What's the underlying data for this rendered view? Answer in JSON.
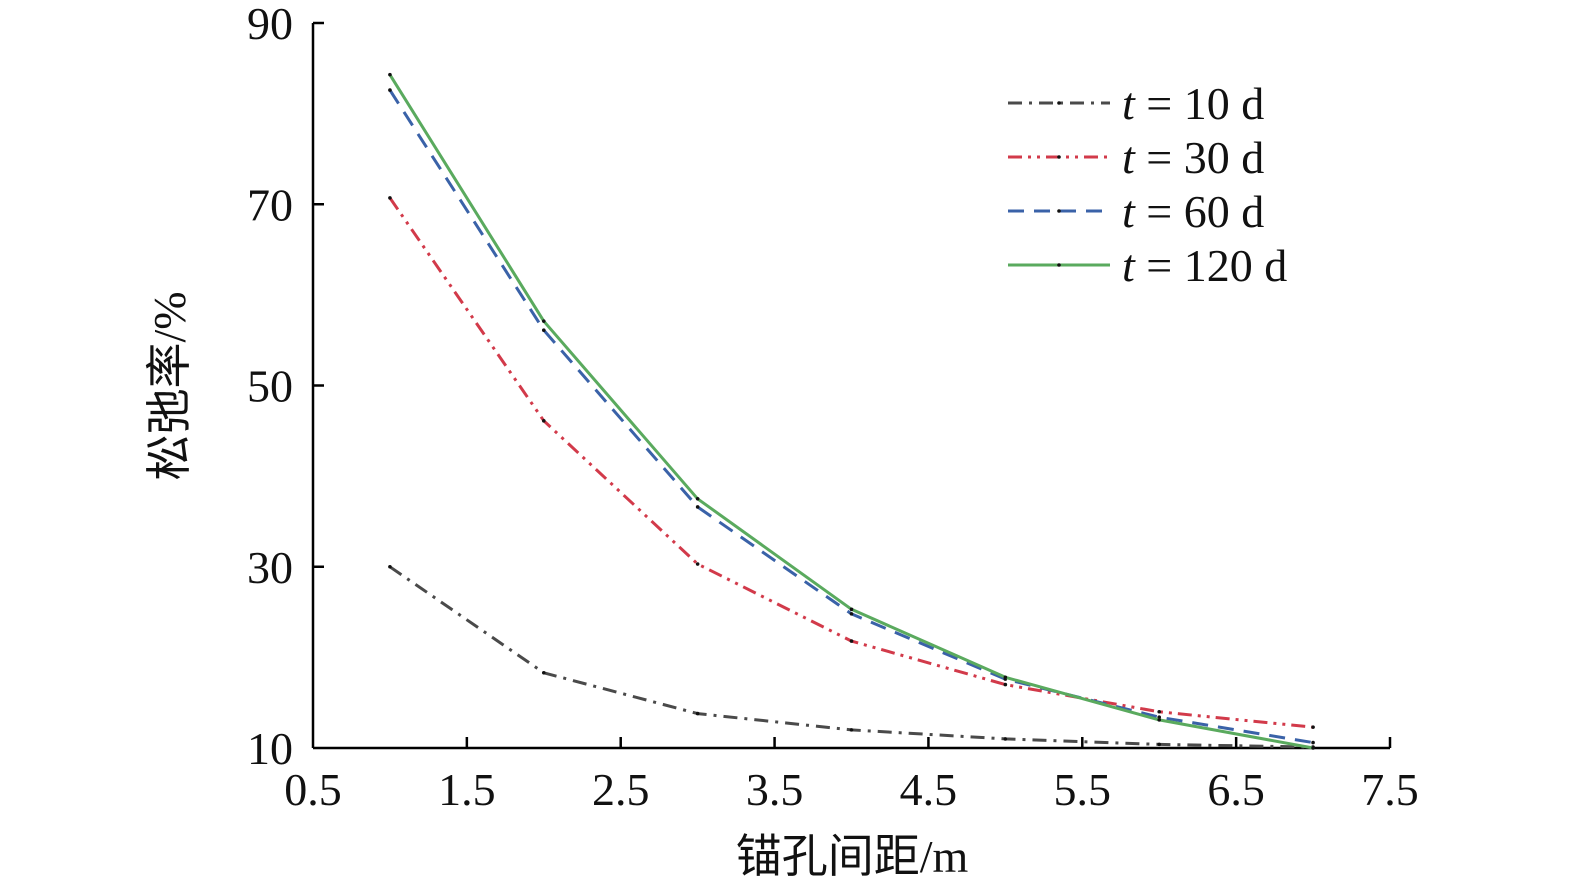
{
  "chart_data": {
    "type": "line",
    "xlabel": "锚孔间距/m",
    "ylabel": "松弛率/%",
    "xlim": [
      0.5,
      7.5
    ],
    "ylim": [
      10,
      90
    ],
    "xticks": [
      "0.5",
      "1.5",
      "2.5",
      "3.5",
      "4.5",
      "5.5",
      "6.5",
      "7.5"
    ],
    "yticks": [
      "10",
      "30",
      "50",
      "70",
      "90"
    ],
    "grid": false,
    "legend_position": "top-right",
    "x": [
      1,
      2,
      3,
      4,
      5,
      6,
      7
    ],
    "series": [
      {
        "name": "t = 10 d",
        "var": "t",
        "rest": " = 10 d",
        "color": "#4a4a4a",
        "dash": "dash-dot",
        "values": [
          30.0,
          18.3,
          13.8,
          12.0,
          11.0,
          10.4,
          10.1
        ]
      },
      {
        "name": "t = 30 d",
        "var": "t",
        "rest": " = 30 d",
        "color": "#d23a4a",
        "dash": "dash-dot-dot",
        "values": [
          70.7,
          46.1,
          30.3,
          21.8,
          17.0,
          14.0,
          12.3
        ]
      },
      {
        "name": "t = 60 d",
        "var": "t",
        "rest": " = 60 d",
        "color": "#3a62a8",
        "dash": "dashed",
        "values": [
          82.6,
          56.1,
          36.6,
          24.8,
          17.6,
          13.4,
          10.6
        ]
      },
      {
        "name": "t = 120 d",
        "var": "t",
        "rest": " = 120 d",
        "color": "#5aaa5e",
        "dash": "solid",
        "values": [
          84.3,
          57.1,
          37.5,
          25.3,
          17.8,
          13.1,
          10.0
        ]
      }
    ]
  }
}
